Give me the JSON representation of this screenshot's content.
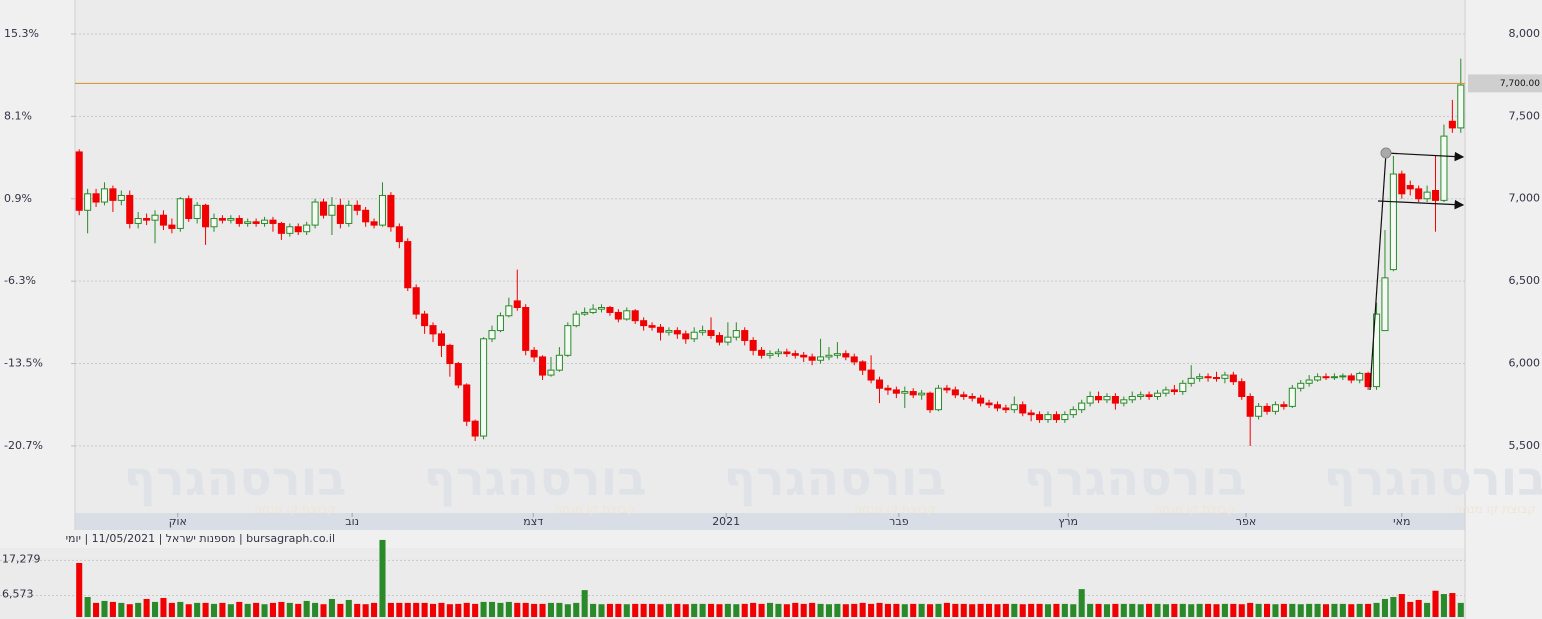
{
  "chart_data": {
    "type": "candlestick",
    "caption": "bursagraph.co.il | מספנות ישראל | 11/05/2021 | יומי",
    "watermark": "בורסהגרף",
    "watermark_subtitle": "קבוצת קו מנחה",
    "up_color": "#2a8a2a",
    "down_color": "#f00000",
    "price_line": {
      "value": 7700,
      "label": "7,700.00"
    },
    "price_line_color": "#d4902a",
    "grid": true,
    "xlim": [
      -0.5,
      164.5
    ],
    "xticks": [
      {
        "value": 11.7,
        "label": "אוק"
      },
      {
        "value": 32.4,
        "label": "נוב"
      },
      {
        "value": 53.9,
        "label": "דצמ"
      },
      {
        "value": 76.8,
        "label": "2021"
      },
      {
        "value": 97.3,
        "label": "פבר"
      },
      {
        "value": 117.4,
        "label": "מרץ"
      },
      {
        "value": 138.5,
        "label": "אפר"
      },
      {
        "value": 157,
        "label": "מאי"
      }
    ],
    "ylim": [
      5093,
      8206
    ],
    "yticks": [
      {
        "value": 5500,
        "label": "5,500"
      },
      {
        "value": 6000,
        "label": "6,000"
      },
      {
        "value": 6500,
        "label": "6,500"
      },
      {
        "value": 7000,
        "label": "7,000"
      },
      {
        "value": 7500,
        "label": "7,500"
      },
      {
        "value": 8000,
        "label": "8,000"
      }
    ],
    "y2lim": [
      -26.56,
      18.27
    ],
    "y2ticks": [
      {
        "value": 15.3,
        "label": "15.3%"
      },
      {
        "value": 8.1,
        "label": "8.1%"
      },
      {
        "value": 0.9,
        "label": "0.9%"
      },
      {
        "value": -6.3,
        "label": "-6.3%"
      },
      {
        "value": -13.5,
        "label": "-13.5%"
      },
      {
        "value": -20.7,
        "label": "-20.7%"
      }
    ],
    "volume_ylim": [
      0,
      25000
    ],
    "volume_yticks": [
      {
        "value": 17279,
        "label": "17,279"
      },
      {
        "value": 6573,
        "label": "6,573"
      }
    ],
    "open": [
      7284,
      6930,
      7030,
      6980,
      7060,
      6990,
      7020,
      6850,
      6880,
      6870,
      6900,
      6840,
      6820,
      7000,
      6880,
      6960,
      6830,
      6880,
      6870,
      6880,
      6850,
      6860,
      6850,
      6870,
      6850,
      6790,
      6830,
      6800,
      6840,
      6980,
      6900,
      6960,
      6850,
      6960,
      6930,
      6860,
      6840,
      7020,
      6830,
      6740,
      6460,
      6300,
      6230,
      6180,
      6110,
      6000,
      5870,
      5650,
      5560,
      6150,
      6200,
      6290,
      6380,
      6340,
      6080,
      6040,
      5930,
      5960,
      6050,
      6230,
      6300,
      6310,
      6330,
      6340,
      6310,
      6270,
      6320,
      6260,
      6230,
      6220,
      6190,
      6200,
      6180,
      6150,
      6190,
      6200,
      6170,
      6130,
      6160,
      6200,
      6140,
      6080,
      6050,
      6060,
      6070,
      6060,
      6050,
      6040,
      6020,
      6040,
      6050,
      6060,
      6040,
      6010,
      5960,
      5900,
      5850,
      5840,
      5820,
      5830,
      5810,
      5820,
      5720,
      5850,
      5840,
      5810,
      5800,
      5790,
      5760,
      5750,
      5730,
      5720,
      5750,
      5700,
      5690,
      5660,
      5690,
      5660,
      5690,
      5720,
      5760,
      5800,
      5780,
      5800,
      5760,
      5780,
      5800,
      5810,
      5800,
      5820,
      5840,
      5830,
      5880,
      5910,
      5920,
      5915,
      5910,
      5930,
      5890,
      5800,
      5680,
      5740,
      5710,
      5750,
      5740,
      5850,
      5880,
      5900,
      5920,
      5915,
      5920,
      5925,
      5900,
      5940,
      5860,
      6200,
      6570,
      7150,
      7080,
      7060,
      7000,
      7050,
      6990,
      7470,
      7430
    ],
    "high": [
      7300,
      7060,
      7060,
      7100,
      7080,
      7050,
      7050,
      6920,
      6910,
      6930,
      6930,
      6880,
      7010,
      7020,
      6980,
      6970,
      6910,
      6900,
      6900,
      6900,
      6880,
      6880,
      6890,
      6890,
      6860,
      6850,
      6850,
      6860,
      7000,
      7000,
      7010,
      7000,
      6990,
      6990,
      6950,
      6880,
      7100,
      7040,
      6850,
      6760,
      6480,
      6320,
      6250,
      6200,
      6120,
      6010,
      5880,
      5660,
      6160,
      6230,
      6310,
      6400,
      6570,
      6360,
      6100,
      6050,
      6040,
      6100,
      6250,
      6320,
      6340,
      6360,
      6360,
      6350,
      6330,
      6340,
      6330,
      6280,
      6250,
      6240,
      6220,
      6220,
      6200,
      6220,
      6230,
      6280,
      6190,
      6250,
      6250,
      6220,
      6160,
      6100,
      6080,
      6090,
      6090,
      6080,
      6070,
      6060,
      6150,
      6100,
      6130,
      6080,
      6060,
      6020,
      6050,
      5920,
      5870,
      5860,
      5860,
      5850,
      5840,
      5830,
      5870,
      5870,
      5860,
      5830,
      5820,
      5810,
      5780,
      5770,
      5750,
      5800,
      5770,
      5720,
      5710,
      5710,
      5710,
      5710,
      5740,
      5780,
      5830,
      5830,
      5820,
      5820,
      5800,
      5830,
      5830,
      5830,
      5840,
      5860,
      5870,
      5900,
      5990,
      5940,
      5940,
      5950,
      5950,
      5950,
      5910,
      5820,
      5760,
      5760,
      5770,
      5770,
      5870,
      5900,
      5930,
      5940,
      5940,
      5940,
      5940,
      5940,
      5950,
      5950,
      6370,
      6810,
      7260,
      7170,
      7110,
      7080,
      7080,
      7260,
      7450,
      7600,
      7850
    ],
    "low": [
      6900,
      6790,
      6950,
      6960,
      6920,
      6960,
      6820,
      6820,
      6840,
      6730,
      6810,
      6790,
      6800,
      6860,
      6850,
      6720,
      6800,
      6850,
      6850,
      6830,
      6830,
      6830,
      6830,
      6800,
      6750,
      6770,
      6780,
      6780,
      6820,
      6880,
      6780,
      6820,
      6830,
      6900,
      6830,
      6820,
      6830,
      6800,
      6700,
      6440,
      6270,
      6180,
      6130,
      6040,
      5920,
      5850,
      5620,
      5530,
      5540,
      6130,
      6190,
      6280,
      6320,
      6050,
      6010,
      5900,
      5920,
      5950,
      6040,
      6220,
      6290,
      6300,
      6310,
      6290,
      6250,
      6260,
      6240,
      6200,
      6200,
      6140,
      6170,
      6150,
      6120,
      6130,
      6170,
      6150,
      6110,
      6110,
      6140,
      6110,
      6050,
      6030,
      6030,
      6040,
      6040,
      6030,
      6010,
      5990,
      6000,
      6020,
      6030,
      6020,
      5990,
      5930,
      5880,
      5760,
      5810,
      5790,
      5730,
      5790,
      5780,
      5700,
      5710,
      5820,
      5790,
      5780,
      5770,
      5740,
      5730,
      5710,
      5700,
      5700,
      5680,
      5650,
      5640,
      5640,
      5640,
      5640,
      5670,
      5700,
      5740,
      5760,
      5760,
      5720,
      5740,
      5760,
      5780,
      5780,
      5780,
      5800,
      5810,
      5810,
      5860,
      5890,
      5890,
      5890,
      5880,
      5870,
      5780,
      5500,
      5660,
      5690,
      5690,
      5720,
      5730,
      5830,
      5860,
      5890,
      5900,
      5900,
      5900,
      5880,
      5880,
      5840,
      5840,
      6200,
      6560,
      7000,
      7020,
      6980,
      6980,
      6800,
      6980,
      7400,
      7400
    ],
    "close": [
      6930,
      7030,
      6980,
      7060,
      6990,
      7020,
      6850,
      6880,
      6870,
      6900,
      6840,
      6820,
      7000,
      6880,
      6960,
      6830,
      6880,
      6870,
      6880,
      6850,
      6860,
      6850,
      6870,
      6850,
      6790,
      6830,
      6800,
      6840,
      6980,
      6900,
      6960,
      6850,
      6960,
      6930,
      6860,
      6840,
      7020,
      6830,
      6740,
      6460,
      6300,
      6230,
      6180,
      6110,
      6000,
      5870,
      5650,
      5560,
      6150,
      6200,
      6290,
      6350,
      6340,
      6080,
      6040,
      5930,
      5960,
      6050,
      6230,
      6300,
      6310,
      6330,
      6340,
      6310,
      6270,
      6320,
      6260,
      6230,
      6220,
      6190,
      6200,
      6180,
      6150,
      6190,
      6200,
      6170,
      6130,
      6160,
      6200,
      6140,
      6080,
      6050,
      6060,
      6070,
      6060,
      6050,
      6040,
      6020,
      6040,
      6050,
      6060,
      6040,
      6010,
      5960,
      5900,
      5850,
      5840,
      5820,
      5830,
      5810,
      5820,
      5720,
      5850,
      5840,
      5810,
      5800,
      5790,
      5760,
      5750,
      5730,
      5720,
      5750,
      5700,
      5690,
      5660,
      5690,
      5660,
      5690,
      5720,
      5760,
      5800,
      5780,
      5800,
      5760,
      5780,
      5800,
      5810,
      5800,
      5820,
      5840,
      5830,
      5880,
      5910,
      5920,
      5915,
      5910,
      5930,
      5890,
      5800,
      5680,
      5740,
      5710,
      5750,
      5740,
      5850,
      5880,
      5900,
      5920,
      5915,
      5920,
      5925,
      5900,
      5940,
      5860,
      6300,
      6520,
      7150,
      7030,
      7060,
      7000,
      7040,
      6990,
      7380,
      7430,
      7690
    ],
    "volume": [
      16470,
      6100,
      4300,
      4900,
      4600,
      4300,
      3900,
      4300,
      5500,
      4600,
      5800,
      4300,
      4600,
      3900,
      4300,
      4300,
      4000,
      4300,
      3900,
      4600,
      4000,
      4300,
      3900,
      4300,
      4600,
      4300,
      4000,
      4900,
      4300,
      3900,
      5500,
      4000,
      5200,
      4000,
      3900,
      4300,
      23500,
      4300,
      4300,
      4300,
      4300,
      4300,
      4000,
      4300,
      3900,
      4000,
      4300,
      4000,
      4600,
      4600,
      4300,
      4600,
      4300,
      4300,
      4000,
      4000,
      4300,
      4300,
      3900,
      4300,
      8200,
      4000,
      3900,
      4000,
      4000,
      3900,
      4000,
      4000,
      4000,
      3900,
      4000,
      4000,
      3900,
      4000,
      4000,
      4000,
      3900,
      4000,
      3900,
      4000,
      4300,
      4000,
      4300,
      4000,
      3900,
      4300,
      4000,
      4300,
      4000,
      3900,
      4000,
      3900,
      4000,
      4300,
      4000,
      4300,
      4000,
      4000,
      3900,
      4000,
      4000,
      3900,
      4000,
      4300,
      4000,
      4000,
      3900,
      4000,
      4000,
      3900,
      4000,
      4000,
      3900,
      4000,
      4000,
      3900,
      4000,
      4000,
      3900,
      8500,
      4000,
      4000,
      3900,
      4000,
      4000,
      4000,
      3900,
      4000,
      4000,
      3900,
      4000,
      4000,
      3900,
      4000,
      4000,
      3900,
      4000,
      4000,
      3900,
      4300,
      4000,
      4000,
      3900,
      4000,
      4000,
      3900,
      4000,
      4000,
      3900,
      4000,
      4000,
      3900,
      4000,
      4000,
      4300,
      5500,
      6100,
      7000,
      4600,
      5200,
      4300,
      8000,
      7000,
      7300,
      4300
    ]
  }
}
